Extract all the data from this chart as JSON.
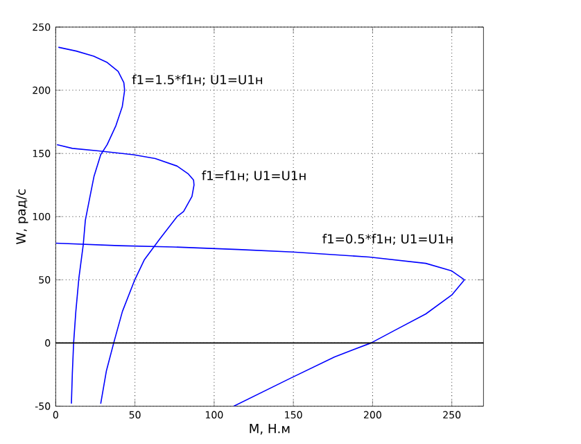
{
  "chart_data": {
    "type": "line",
    "xlabel": "M, Н.м",
    "ylabel": "W, рад/с",
    "xlim": [
      0,
      270
    ],
    "ylim": [
      -50,
      250
    ],
    "xticks": [
      0,
      50,
      100,
      150,
      200,
      250
    ],
    "yticks": [
      -50,
      0,
      50,
      100,
      150,
      200,
      250
    ],
    "grid": true,
    "line_style": "solid",
    "marker": "none",
    "ref_lines": [
      {
        "axis": "y",
        "value": 0,
        "color": "#000000"
      }
    ],
    "annotations": [
      "f1=1.5*f1н; U1=U1н",
      "f1=f1н; U1=U1н",
      "f1=0.5*f1н; U1=U1н"
    ],
    "series": [
      {
        "color": "#0000ff",
        "x": [
          1.7,
          13,
          24,
          32.5,
          39.4,
          43,
          43.5,
          42,
          38,
          32.5,
          28.4,
          24.2,
          21.5,
          18.7,
          17.4,
          14.6,
          12.7,
          11.3,
          10.5,
          9.9
        ],
        "values": [
          234,
          231,
          227,
          222,
          215,
          206,
          200,
          187,
          172,
          157,
          149,
          132,
          115,
          97,
          78,
          51,
          25,
          0,
          -24,
          -48
        ]
      },
      {
        "color": "#0000ff",
        "x": [
          0.8,
          10.5,
          27,
          49,
          62.8,
          76.6,
          83.5,
          87,
          87.3,
          86,
          80.7,
          76.6,
          65.5,
          56,
          49.9,
          42.1,
          36.6,
          32,
          28.4
        ],
        "values": [
          157,
          154,
          152,
          149,
          146,
          140,
          134,
          129,
          125,
          116,
          104,
          100,
          82,
          66,
          50,
          25,
          0,
          -22,
          -48
        ]
      },
      {
        "color": "#0000ff",
        "x": [
          0,
          40,
          74,
          115,
          149.6,
          197.8,
          233.6,
          250,
          258,
          250,
          233.6,
          214,
          199,
          176,
          148,
          112.4
        ],
        "values": [
          79,
          77,
          76,
          74,
          72,
          68,
          63,
          57,
          50,
          38,
          23,
          10,
          0,
          -11,
          -28,
          -50
        ]
      }
    ]
  }
}
